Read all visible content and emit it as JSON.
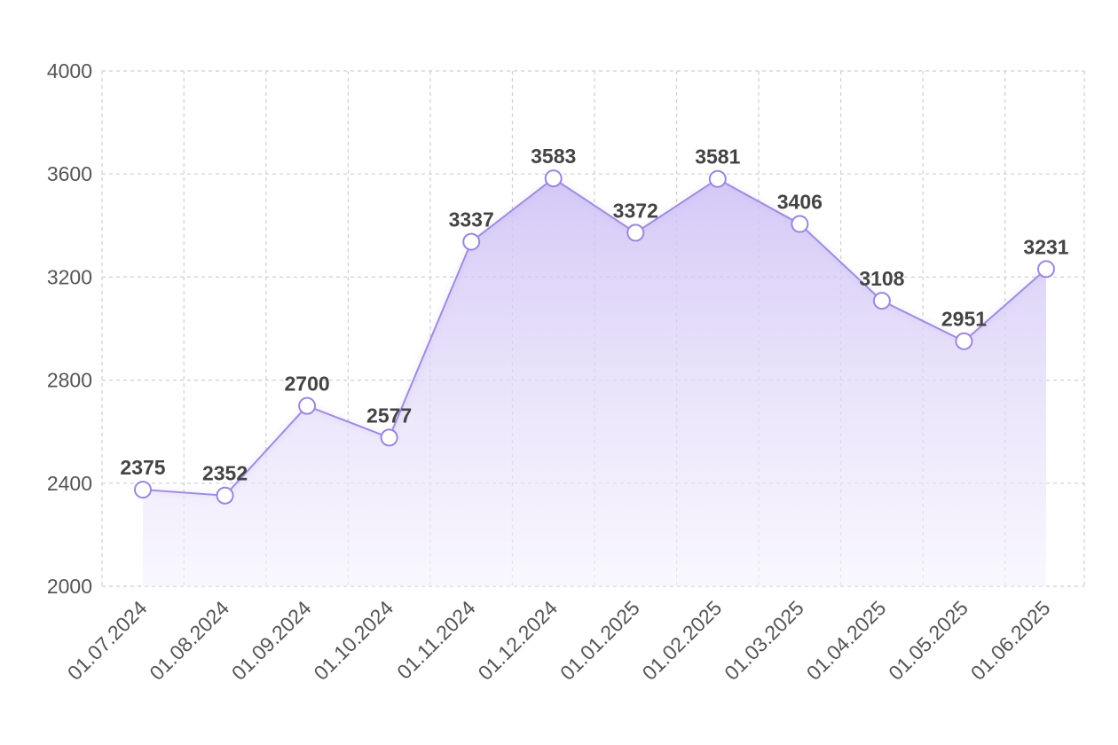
{
  "chart_data": {
    "type": "area",
    "title": "",
    "xlabel": "",
    "ylabel": "",
    "categories": [
      "01.07.2024",
      "01.08.2024",
      "01.09.2024",
      "01.10.2024",
      "01.11.2024",
      "01.12.2024",
      "01.01.2025",
      "01.02.2025",
      "01.03.2025",
      "01.04.2025",
      "01.05.2025",
      "01.06.2025"
    ],
    "series": [
      {
        "values": [
          2375,
          2352,
          2700,
          2577,
          3337,
          3583,
          3372,
          3581,
          3406,
          3108,
          2951,
          3231
        ]
      }
    ],
    "data_labels": [
      "2375",
      "2352",
      "2700",
      "2577",
      "3337",
      "3583",
      "3372",
      "3581",
      "3406",
      "3108",
      "2951",
      "3231"
    ],
    "y_ticks": [
      "2000",
      "2400",
      "2800",
      "3200",
      "3600",
      "4000"
    ],
    "y_tick_values": [
      2000,
      2400,
      2800,
      3200,
      3600,
      4000
    ],
    "ylim": [
      2000,
      4000
    ],
    "grid": true,
    "legend": "none",
    "colors": {
      "line": "#a08ce0",
      "fill_top": "#cdbff5",
      "fill_bottom": "#f5f2fd",
      "point_stroke": "#9b87dd",
      "grid": "#cfcfd4",
      "text": "#555555"
    }
  }
}
